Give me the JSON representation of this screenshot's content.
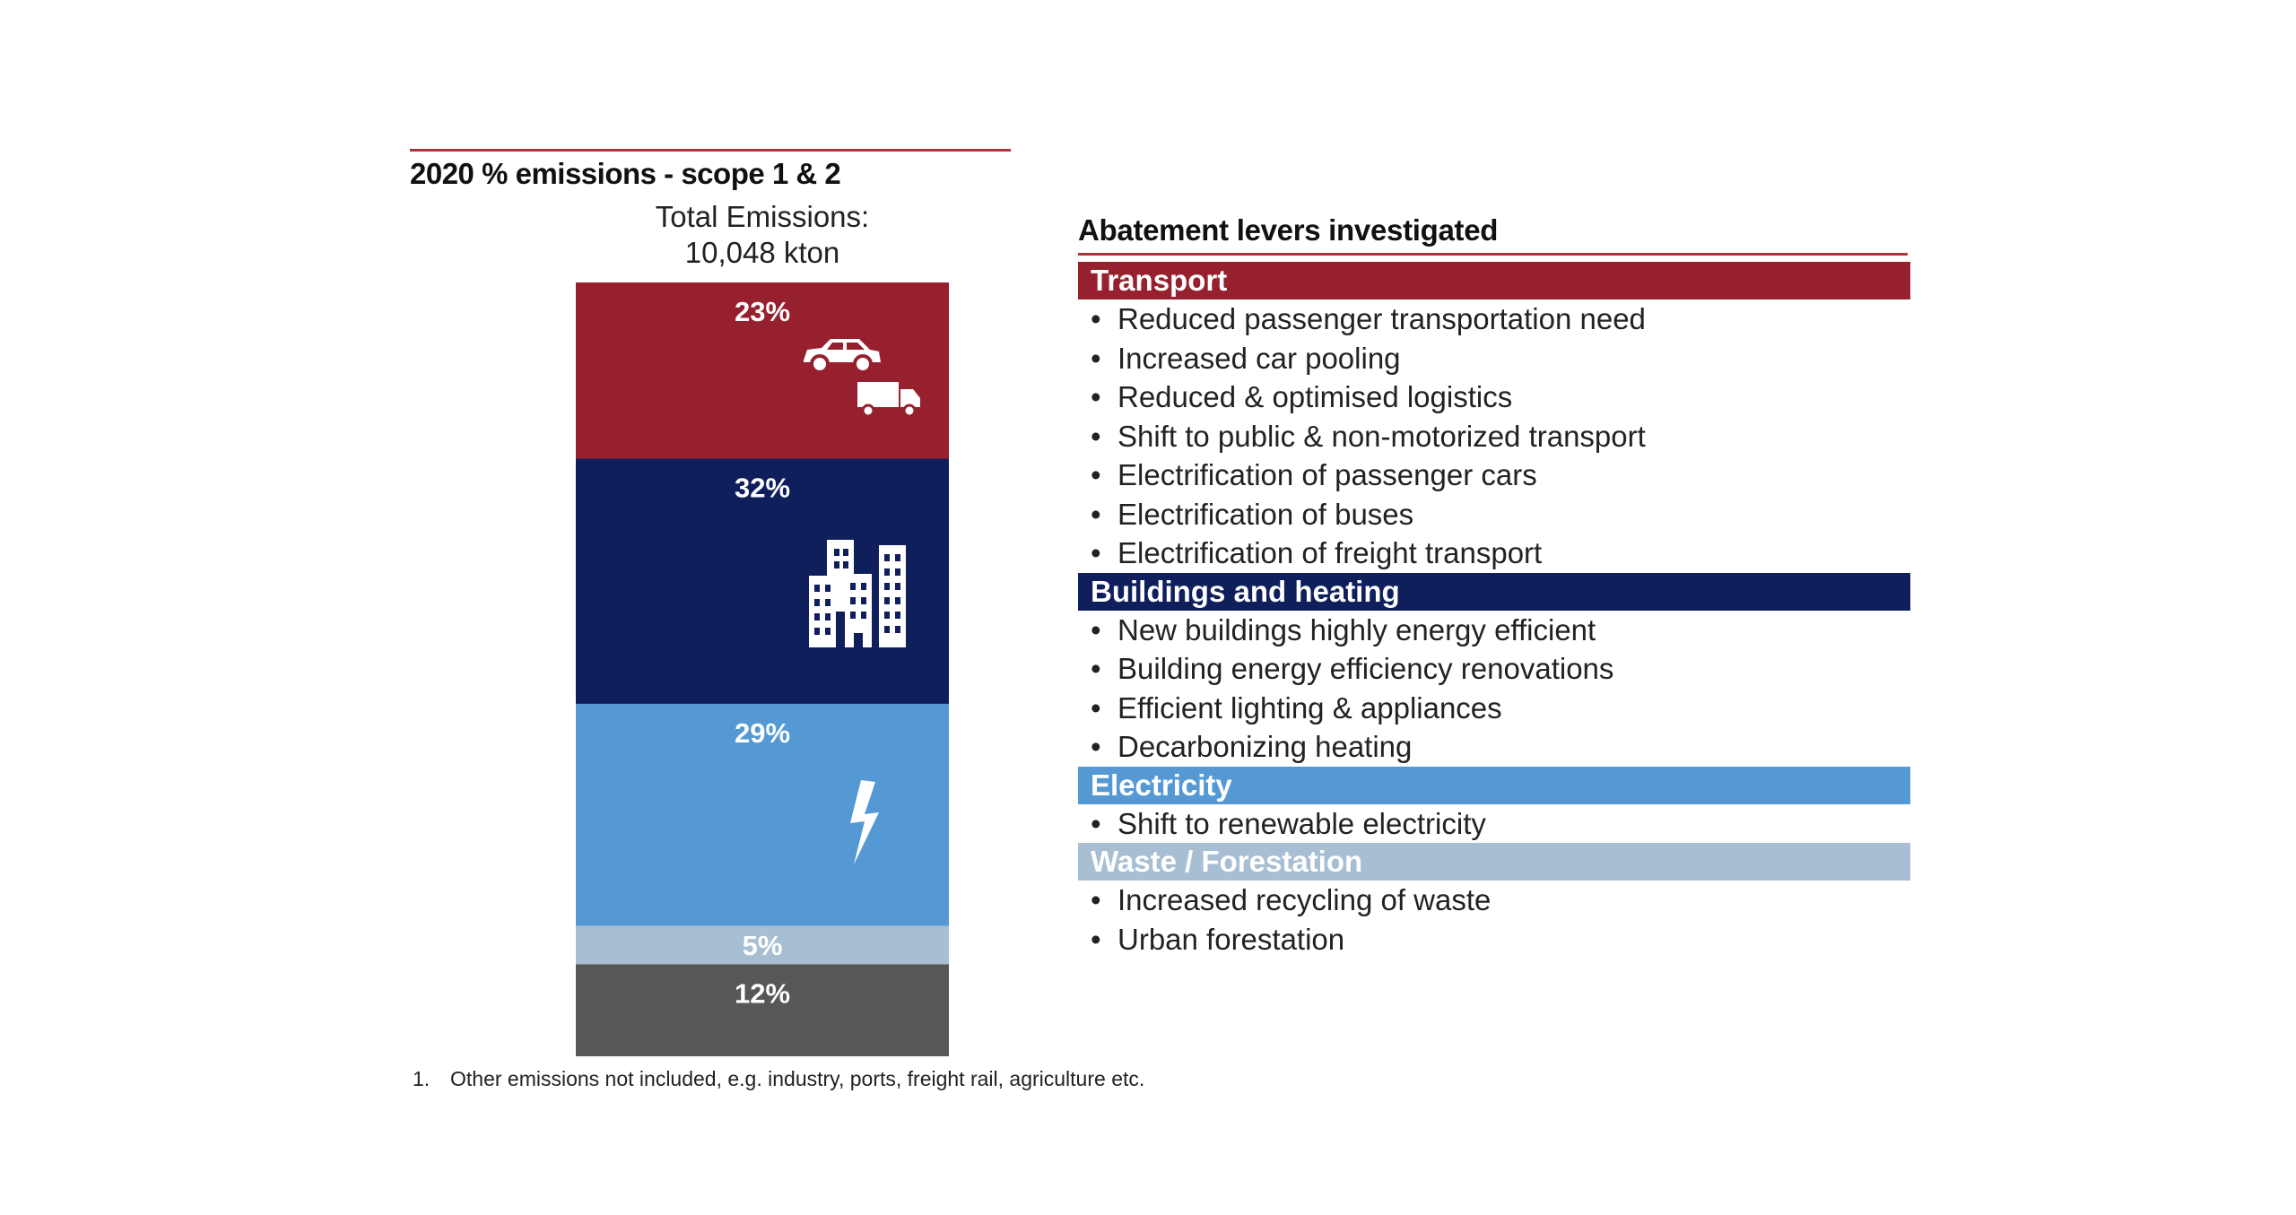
{
  "left_title": "2020 % emissions - scope 1 & 2",
  "total": {
    "line1": "Total Emissions:",
    "line2": "10,048 kton"
  },
  "chart_data": {
    "type": "bar",
    "stacked": true,
    "title": "2020 % emissions - scope 1 & 2",
    "subtitle": "Total Emissions: 10,048 kton",
    "unit": "%",
    "segments": [
      {
        "label": "23%",
        "value": 23,
        "color": "#97202e",
        "icon": "car-truck-icon"
      },
      {
        "label": "32%",
        "value": 32,
        "color": "#0e1f5c",
        "icon": "buildings-icon"
      },
      {
        "label": "29%",
        "value": 29,
        "color": "#5499d4",
        "icon": "lightning-icon"
      },
      {
        "label": "5%",
        "value": 5,
        "color": "#a8bfd3",
        "icon": ""
      },
      {
        "label": "12%",
        "value": 12,
        "color": "#575757",
        "icon": ""
      }
    ]
  },
  "levers": {
    "title": "Abatement levers investigated",
    "categories": [
      {
        "name": "Transport",
        "color": "#97202e",
        "items": [
          "Reduced passenger transportation need",
          "Increased car pooling",
          "Reduced & optimised logistics",
          "Shift to public & non-motorized transport",
          "Electrification of passenger cars",
          "Electrification of buses",
          "Electrification of freight transport"
        ]
      },
      {
        "name": "Buildings and heating",
        "color": "#0e1f5c",
        "items": [
          "New buildings highly energy efficient",
          "Building energy efficiency renovations",
          "Efficient lighting & appliances",
          "Decarbonizing heating"
        ]
      },
      {
        "name": "Electricity",
        "color": "#5499d4",
        "items": [
          "Shift to renewable electricity"
        ]
      },
      {
        "name": "Waste / Forestation",
        "color": "#a8bfd3",
        "items": [
          "Increased recycling of waste",
          "Urban forestation"
        ]
      }
    ]
  },
  "footnote": {
    "number": "1.",
    "text": "Other emissions not included, e.g. industry, ports, freight rail, agriculture etc."
  }
}
